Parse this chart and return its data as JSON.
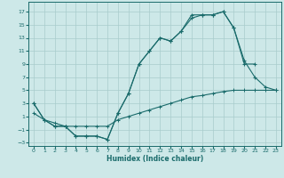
{
  "xlabel": "Humidex (Indice chaleur)",
  "bg_color": "#cde8e8",
  "grid_color": "#a8cccc",
  "line_color": "#1a6b6b",
  "xlim": [
    -0.5,
    23.5
  ],
  "ylim": [
    -3.5,
    18.5
  ],
  "xticks": [
    0,
    1,
    2,
    3,
    4,
    5,
    6,
    7,
    8,
    9,
    10,
    11,
    12,
    13,
    14,
    15,
    16,
    17,
    18,
    19,
    20,
    21,
    22,
    23
  ],
  "yticks": [
    -3,
    -1,
    1,
    3,
    5,
    7,
    9,
    11,
    13,
    15,
    17
  ],
  "line1_x": [
    0,
    1,
    2,
    3,
    4,
    5,
    6,
    7,
    8,
    9,
    10,
    11,
    12,
    13,
    14,
    15,
    16,
    17,
    18,
    19,
    20,
    21,
    22,
    23
  ],
  "line1_y": [
    3,
    0.5,
    -0.5,
    -0.5,
    -2.0,
    -2.0,
    -2.0,
    -2.5,
    1.5,
    4.5,
    9.0,
    11.0,
    13.0,
    12.5,
    14.0,
    16.5,
    16.5,
    16.5,
    17.0,
    14.5,
    9.5,
    7.0,
    5.5,
    5.0
  ],
  "line2_x": [
    0,
    1,
    2,
    3,
    4,
    5,
    6,
    7,
    8,
    9,
    10,
    11,
    12,
    13,
    14,
    15,
    16,
    17,
    18,
    19,
    20,
    21
  ],
  "line2_y": [
    3,
    0.5,
    -0.5,
    -0.5,
    -2.0,
    -2.0,
    -2.0,
    -2.5,
    1.5,
    4.5,
    9.0,
    11.0,
    13.0,
    12.5,
    14.0,
    16.0,
    16.5,
    16.5,
    17.0,
    14.5,
    9.0,
    9.0
  ],
  "line3_x": [
    0,
    1,
    2,
    3,
    4,
    5,
    6,
    7,
    8,
    9,
    10,
    11,
    12,
    13,
    14,
    15,
    16,
    17,
    18,
    19,
    20,
    21,
    22,
    23
  ],
  "line3_y": [
    1.5,
    0.5,
    0.0,
    -0.5,
    -0.5,
    -0.5,
    -0.5,
    -0.5,
    0.5,
    1.0,
    1.5,
    2.0,
    2.5,
    3.0,
    3.5,
    4.0,
    4.2,
    4.5,
    4.8,
    5.0,
    5.0,
    5.0,
    5.0,
    5.0
  ]
}
